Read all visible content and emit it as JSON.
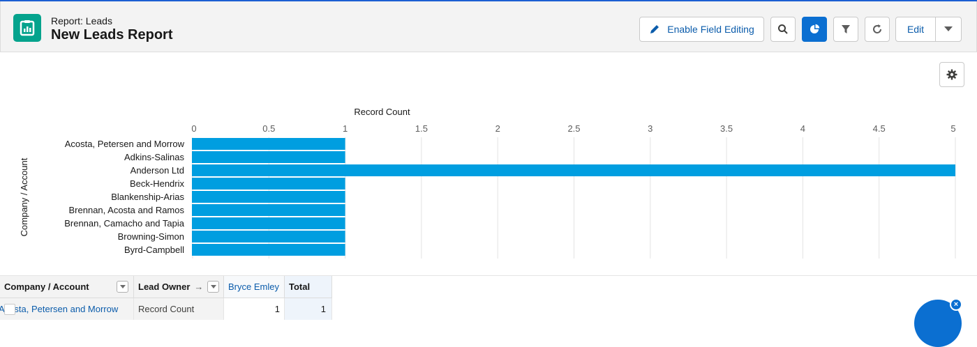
{
  "header": {
    "kicker": "Report: Leads",
    "title": "New Leads Report",
    "enable_field_editing": "Enable Field Editing",
    "edit": "Edit"
  },
  "colors": {
    "brand_icon": "#04a38d",
    "accent": "#0b6fd1",
    "bar": "#009ee0"
  },
  "chart_data": {
    "type": "bar",
    "orientation": "horizontal",
    "xlabel": "Record Count",
    "ylabel": "Company / Account",
    "categories": [
      "Acosta, Petersen and Morrow",
      "Adkins-Salinas",
      "Anderson Ltd",
      "Beck-Hendrix",
      "Blankenship-Arias",
      "Brennan, Acosta and Ramos",
      "Brennan, Camacho and Tapia",
      "Browning-Simon",
      "Byrd-Campbell"
    ],
    "values": [
      1,
      1,
      5,
      1,
      1,
      1,
      1,
      1,
      1
    ],
    "xlim": [
      0,
      5
    ],
    "ticks": [
      "0",
      "0.5",
      "1",
      "1.5",
      "2",
      "2.5",
      "3",
      "3.5",
      "4",
      "4.5",
      "5"
    ],
    "grid": true
  },
  "table": {
    "headers": {
      "company": "Company / Account",
      "owner": "Lead Owner",
      "owner_arrow": "→",
      "bryce": "Bryce Emley",
      "total": "Total"
    },
    "row": {
      "company": "Acosta, Petersen and Morrow",
      "owner": "Record Count",
      "bryce": "1",
      "total": "1"
    }
  },
  "widget": {
    "close": "×"
  }
}
